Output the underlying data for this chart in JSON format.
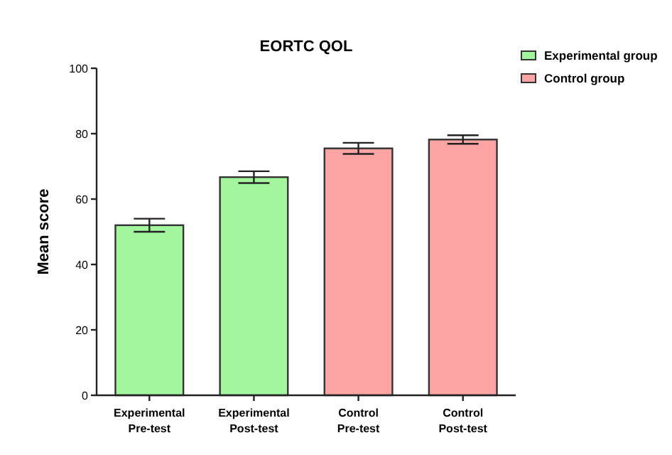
{
  "chart_data": {
    "type": "bar",
    "title": "EORTC QOL",
    "ylabel": "Mean score",
    "categories": [
      "Experimental\nPre-test",
      "Experimental\nPost-test",
      "Control\nPre-test",
      "Control\nPost-test"
    ],
    "series": [
      {
        "name": "Experimental group",
        "color": "#a3f59d",
        "values": [
          52,
          66.7,
          null,
          null
        ],
        "errors": [
          2,
          1.8,
          null,
          null
        ]
      },
      {
        "name": "Control group",
        "color": "#fca3a3",
        "values": [
          null,
          null,
          75.5,
          78.2
        ],
        "errors": [
          null,
          null,
          1.7,
          1.3
        ]
      }
    ],
    "ylim": [
      0,
      100
    ],
    "yticks": [
      0,
      20,
      40,
      60,
      80,
      100
    ],
    "grid": false,
    "legend": "top right"
  }
}
